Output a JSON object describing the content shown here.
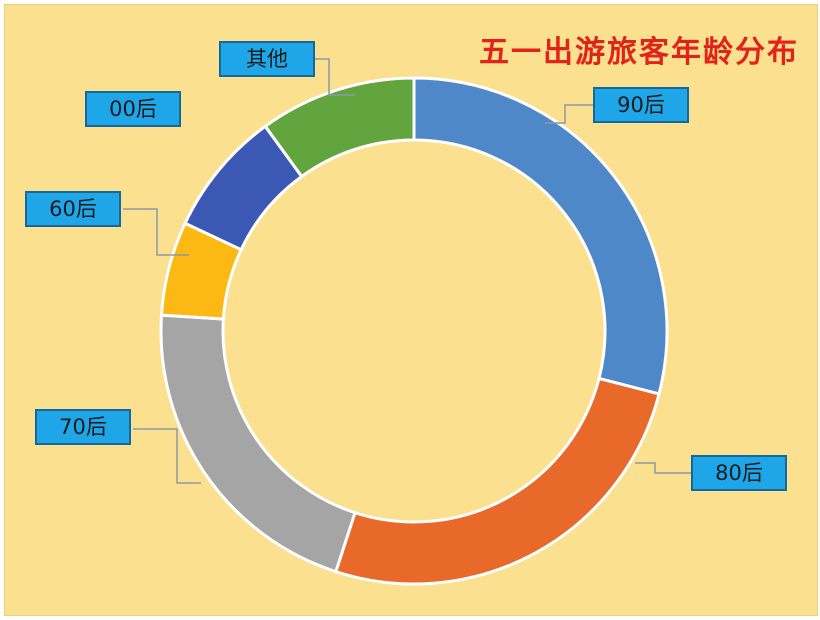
{
  "chart_data": {
    "type": "pie",
    "variant": "donut",
    "title": "五一出游旅客年龄分布",
    "start_angle_deg": 0,
    "slices": [
      {
        "label": "90后",
        "value": 29,
        "color": "#4f88c9"
      },
      {
        "label": "80后",
        "value": 26,
        "color": "#e8692a"
      },
      {
        "label": "70后",
        "value": 21,
        "color": "#a5a5a5"
      },
      {
        "label": "60后",
        "value": 6,
        "color": "#fdb913"
      },
      {
        "label": "00后",
        "value": 8,
        "color": "#3b58b5"
      },
      {
        "label": "其他",
        "value": 10,
        "color": "#62a53f"
      }
    ],
    "legend": "none",
    "label_style": "callout boxes"
  },
  "colors": {
    "background": "#fbe08f",
    "title": "#e2231a",
    "label_box": "#1ea6e9",
    "label_border": "#15689b",
    "leader_line": "#8a9aa6"
  }
}
